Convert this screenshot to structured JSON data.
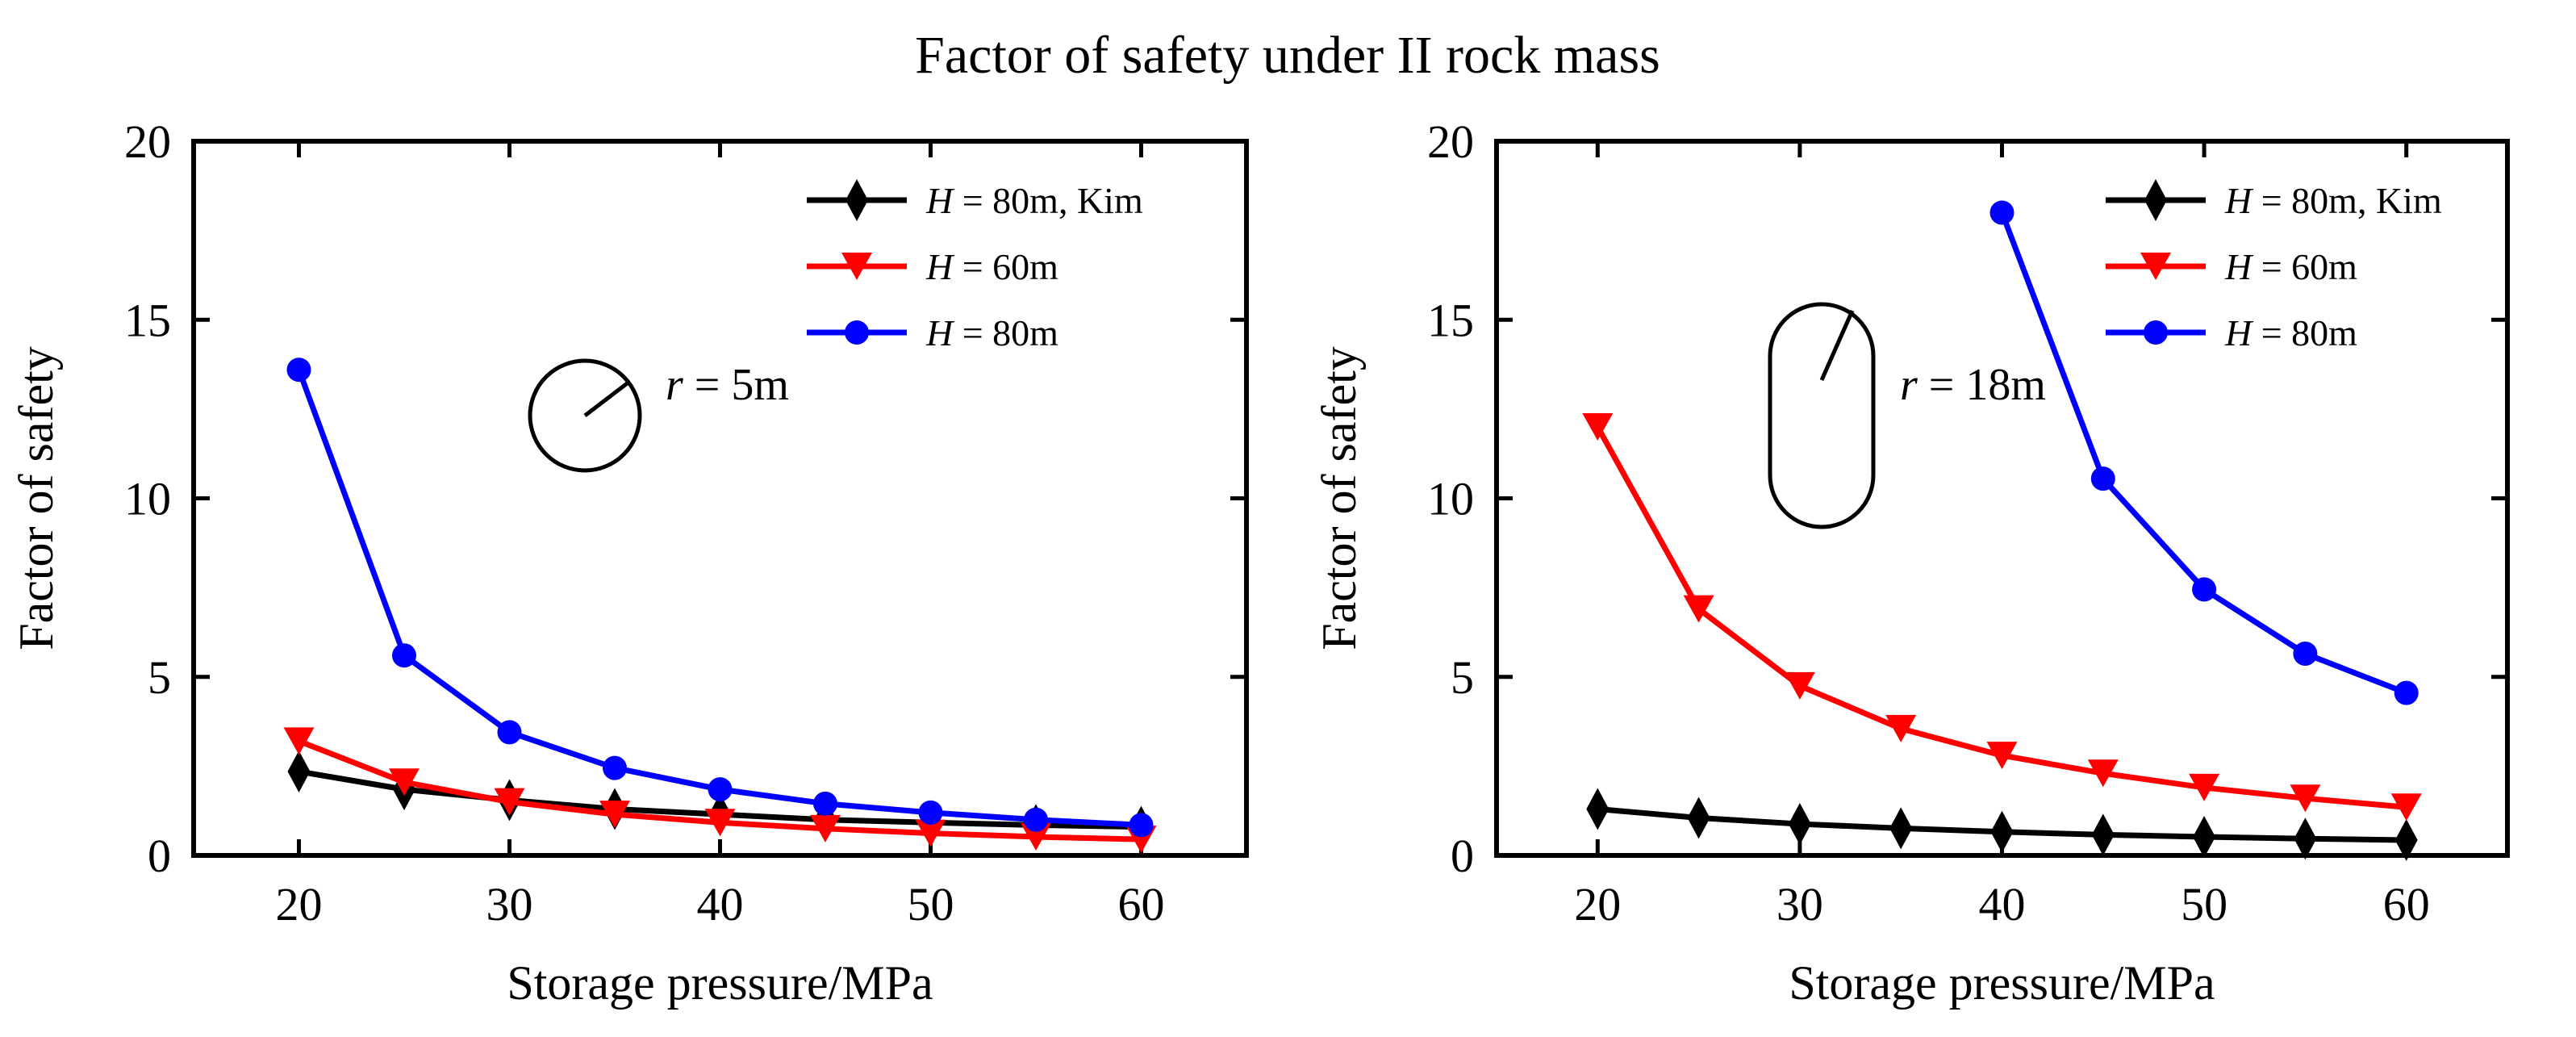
{
  "title": "Factor of safety under II rock mass",
  "colors": {
    "black": "#000000",
    "red": "#ff0000",
    "blue": "#0000ff"
  },
  "chart_data": [
    {
      "type": "line",
      "xlabel": "Storage pressure/MPa",
      "ylabel": "Factor of safety",
      "xlim": [
        15,
        65
      ],
      "ylim": [
        0,
        20
      ],
      "xticks": [
        20,
        30,
        40,
        50,
        60
      ],
      "yticks": [
        0,
        5,
        10,
        15,
        20
      ],
      "legend_position": "top-right",
      "annotation": {
        "text_italic": "r",
        "text_rest": " = 5m",
        "shape": "circle"
      },
      "series": [
        {
          "name": "H = 80m, Kim",
          "name_italic": "H",
          "name_rest": " = 80m, Kim",
          "color": "#000000",
          "marker": "diamond",
          "x": [
            20,
            25,
            30,
            35,
            40,
            45,
            50,
            55,
            60
          ],
          "y": [
            2.35,
            1.85,
            1.55,
            1.3,
            1.15,
            1.0,
            0.92,
            0.85,
            0.8
          ]
        },
        {
          "name": "H = 60m",
          "name_italic": "H",
          "name_rest": " = 60m",
          "color": "#ff0000",
          "marker": "triangle-down",
          "x": [
            20,
            25,
            30,
            35,
            40,
            45,
            50,
            55,
            60
          ],
          "y": [
            3.2,
            2.05,
            1.5,
            1.15,
            0.92,
            0.75,
            0.62,
            0.52,
            0.45
          ]
        },
        {
          "name": "H = 80m",
          "name_italic": "H",
          "name_rest": " = 80m",
          "color": "#0000ff",
          "marker": "circle",
          "x": [
            20,
            25,
            30,
            35,
            40,
            45,
            50,
            55,
            60
          ],
          "y": [
            13.6,
            5.6,
            3.45,
            2.45,
            1.85,
            1.45,
            1.2,
            1.0,
            0.85
          ]
        }
      ]
    },
    {
      "type": "line",
      "xlabel": "Storage pressure/MPa",
      "ylabel": "Factor of safety",
      "xlim": [
        15,
        65
      ],
      "ylim": [
        0,
        20
      ],
      "xticks": [
        20,
        30,
        40,
        50,
        60
      ],
      "yticks": [
        0,
        5,
        10,
        15,
        20
      ],
      "legend_position": "top-right",
      "annotation": {
        "text_italic": "r",
        "text_rest": " = 18m",
        "shape": "stadium"
      },
      "series": [
        {
          "name": "H = 80m, Kim",
          "name_italic": "H",
          "name_rest": " = 80m, Kim",
          "color": "#000000",
          "marker": "diamond",
          "x": [
            20,
            25,
            30,
            35,
            40,
            45,
            50,
            55,
            60
          ],
          "y": [
            1.3,
            1.05,
            0.88,
            0.76,
            0.66,
            0.58,
            0.52,
            0.47,
            0.43
          ]
        },
        {
          "name": "H = 60m",
          "name_italic": "H",
          "name_rest": " = 60m",
          "color": "#ff0000",
          "marker": "triangle-down",
          "x": [
            20,
            25,
            30,
            35,
            40,
            45,
            50,
            55,
            60
          ],
          "y": [
            12.0,
            6.9,
            4.75,
            3.55,
            2.8,
            2.3,
            1.9,
            1.6,
            1.35
          ]
        },
        {
          "name": "H = 80m",
          "name_italic": "H",
          "name_rest": " = 80m",
          "color": "#0000ff",
          "marker": "circle",
          "x": [
            40,
            45,
            50,
            55,
            60
          ],
          "y": [
            18.0,
            10.55,
            7.45,
            5.65,
            4.55
          ]
        }
      ]
    }
  ]
}
